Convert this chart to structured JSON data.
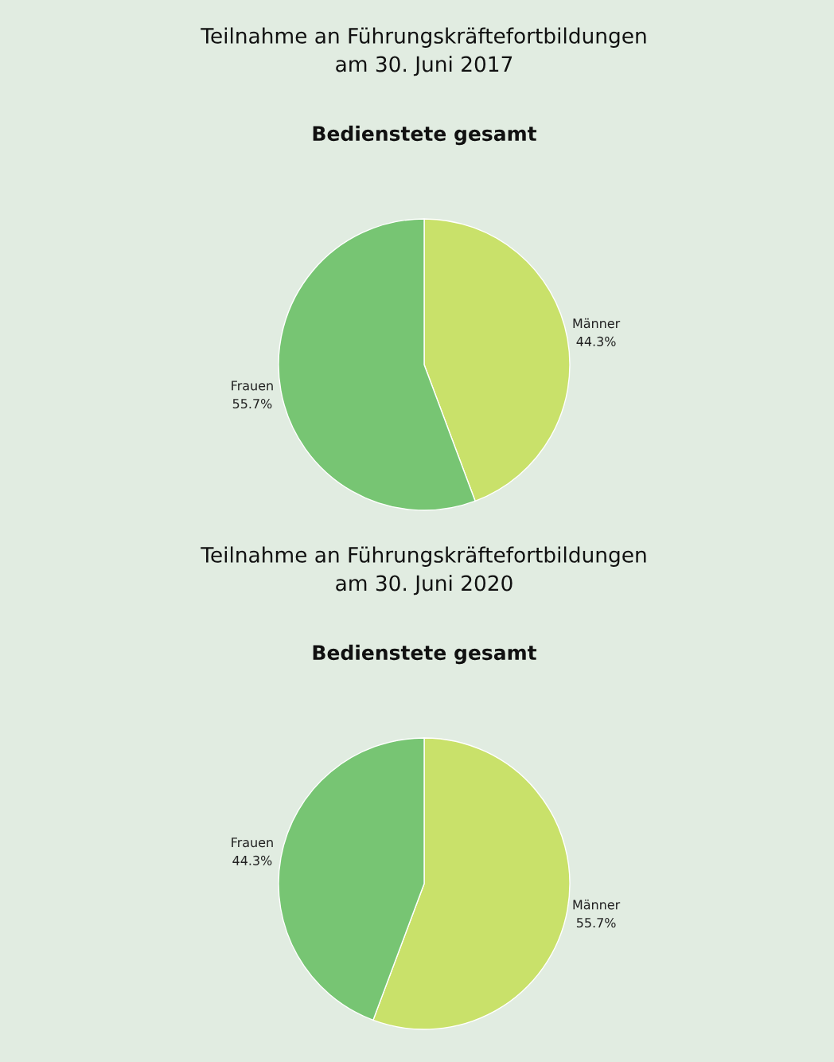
{
  "chart_data": [
    {
      "type": "pie",
      "title": "Teilnahme an Führungskräftefortbildungen\nam 30. Juni 2017",
      "subtitle": "Bedienstete gesamt",
      "categories": [
        "Männer",
        "Frauen"
      ],
      "values": [
        44.3,
        55.7
      ],
      "value_labels": [
        "44.3%",
        "55.7%"
      ],
      "colors": [
        "#c9e16a",
        "#77c573"
      ]
    },
    {
      "type": "pie",
      "title": "Teilnahme an Führungskräftefortbildungen\nam 30. Juni 2020",
      "subtitle": "Bedienstete gesamt",
      "categories": [
        "Männer",
        "Frauen"
      ],
      "values": [
        55.7,
        44.3
      ],
      "value_labels": [
        "55.7%",
        "44.3%"
      ],
      "colors": [
        "#c9e16a",
        "#77c573"
      ]
    }
  ]
}
